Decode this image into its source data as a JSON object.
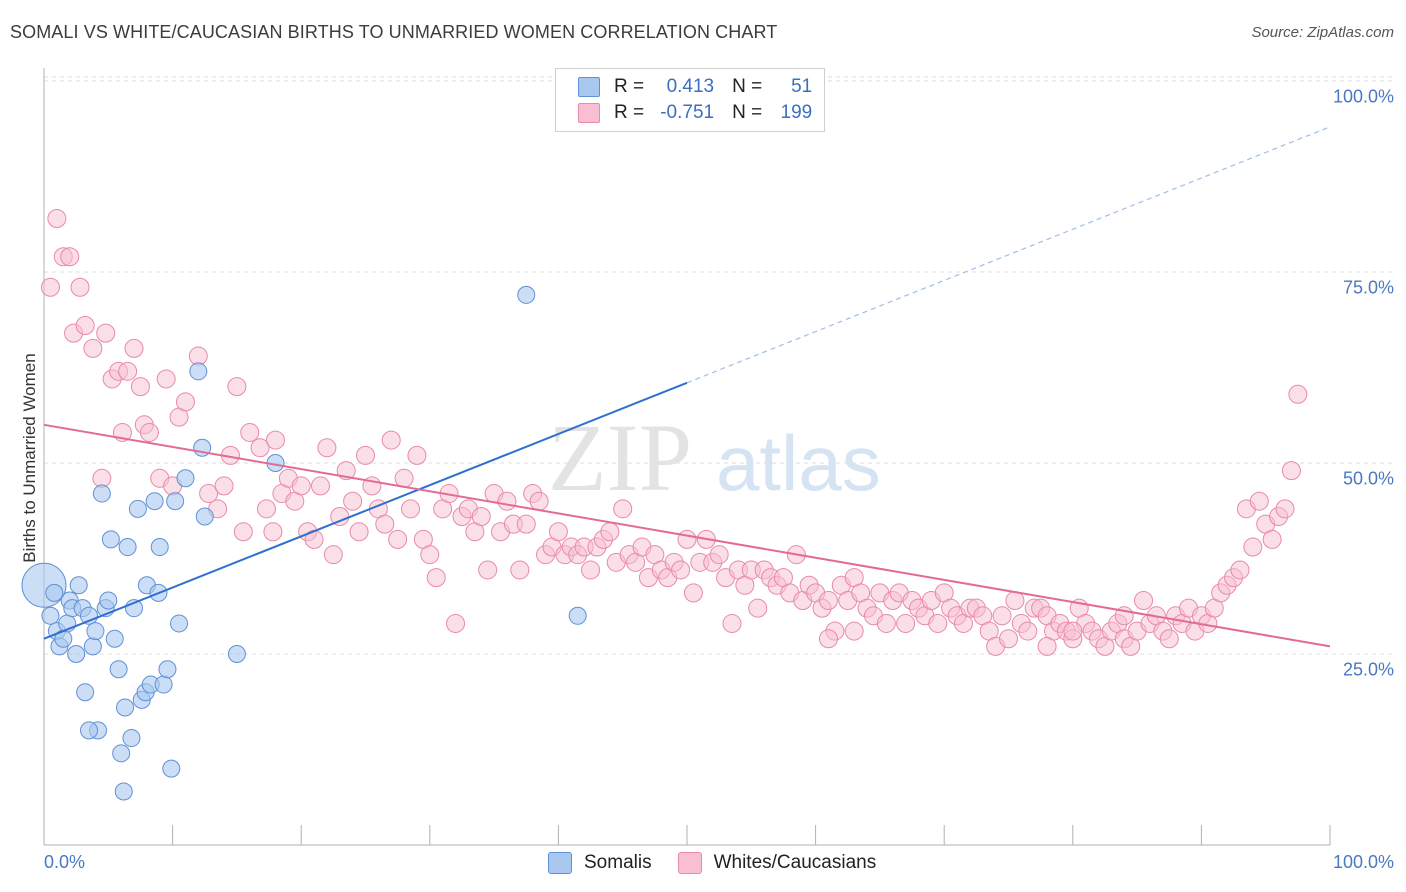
{
  "chart_data": {
    "type": "scatter",
    "title": "SOMALI VS WHITE/CAUCASIAN BIRTHS TO UNMARRIED WOMEN CORRELATION CHART",
    "source": "Source: ZipAtlas.com",
    "xlabel": "",
    "ylabel": "Births to Unmarried Women",
    "xlim": [
      0,
      100
    ],
    "ylim": [
      0,
      105
    ],
    "x_tick_labels": [
      "0.0%",
      "100.0%"
    ],
    "y_tick_labels": [
      "100.0%",
      "75.0%",
      "50.0%",
      "25.0%"
    ],
    "y_ticks": [
      100,
      75,
      50,
      25
    ],
    "grid": true,
    "watermark": {
      "part1": "ZIP",
      "part2": "atlas"
    },
    "colors": {
      "somali_fill": "#a9c8ef",
      "somali_stroke": "#5f91d6",
      "somali_line": "#2f6fd0",
      "white_fill": "#f7bfd1",
      "white_stroke": "#e88aa8",
      "white_line": "#e36a94"
    },
    "legend": [
      {
        "r_label": "R =",
        "r_value": "0.413",
        "n_label": "N =",
        "n_value": "51"
      },
      {
        "r_label": "R =",
        "r_value": "-0.751",
        "n_label": "N =",
        "n_value": "199"
      }
    ],
    "series": [
      {
        "name": "Somalis",
        "regression": {
          "x0": 0,
          "y0": 27,
          "x1": 50,
          "y1": 60.5,
          "dash_to_x": 100,
          "dash_to_y": 94
        },
        "points": [
          [
            0,
            34
          ],
          [
            0.5,
            30
          ],
          [
            0.8,
            33
          ],
          [
            1,
            28
          ],
          [
            1.2,
            26
          ],
          [
            1.5,
            27
          ],
          [
            1.8,
            29
          ],
          [
            2,
            32
          ],
          [
            2.2,
            31
          ],
          [
            2.5,
            25
          ],
          [
            2.7,
            34
          ],
          [
            3,
            31
          ],
          [
            3.2,
            20
          ],
          [
            3.5,
            30
          ],
          [
            3.8,
            26
          ],
          [
            4,
            28
          ],
          [
            4.2,
            15
          ],
          [
            4.5,
            46
          ],
          [
            4.8,
            31
          ],
          [
            5,
            32
          ],
          [
            5.2,
            40
          ],
          [
            5.5,
            27
          ],
          [
            5.8,
            23
          ],
          [
            6,
            12
          ],
          [
            6.2,
            7
          ],
          [
            6.5,
            39
          ],
          [
            6.8,
            14
          ],
          [
            7,
            31
          ],
          [
            7.3,
            44
          ],
          [
            7.6,
            19
          ],
          [
            7.9,
            20
          ],
          [
            8,
            34
          ],
          [
            8.3,
            21
          ],
          [
            8.6,
            45
          ],
          [
            8.9,
            33
          ],
          [
            9,
            39
          ],
          [
            9.3,
            21
          ],
          [
            9.6,
            23
          ],
          [
            9.9,
            10
          ],
          [
            10.2,
            45
          ],
          [
            10.5,
            29
          ],
          [
            11,
            48
          ],
          [
            12,
            62
          ],
          [
            12.3,
            52
          ],
          [
            12.5,
            43
          ],
          [
            15,
            25
          ],
          [
            18,
            50
          ],
          [
            3.5,
            15
          ],
          [
            6.3,
            18
          ],
          [
            37.5,
            72
          ],
          [
            41.5,
            30
          ]
        ]
      },
      {
        "name": "Whites/Caucasians",
        "regression": {
          "x0": 0,
          "y0": 55,
          "x1": 100,
          "y1": 26
        },
        "points": [
          [
            0.5,
            73
          ],
          [
            1,
            82
          ],
          [
            1.5,
            77
          ],
          [
            2,
            77
          ],
          [
            2.3,
            67
          ],
          [
            2.8,
            73
          ],
          [
            3.2,
            68
          ],
          [
            3.8,
            65
          ],
          [
            4.5,
            48
          ],
          [
            4.8,
            67
          ],
          [
            5.3,
            61
          ],
          [
            5.8,
            62
          ],
          [
            6.1,
            54
          ],
          [
            6.5,
            62
          ],
          [
            7,
            65
          ],
          [
            7.5,
            60
          ],
          [
            7.8,
            55
          ],
          [
            8.2,
            54
          ],
          [
            9,
            48
          ],
          [
            9.5,
            61
          ],
          [
            10,
            47
          ],
          [
            10.5,
            56
          ],
          [
            11,
            58
          ],
          [
            12,
            64
          ],
          [
            12.8,
            46
          ],
          [
            13.5,
            44
          ],
          [
            14,
            47
          ],
          [
            14.5,
            51
          ],
          [
            15,
            60
          ],
          [
            15.5,
            41
          ],
          [
            16,
            54
          ],
          [
            16.8,
            52
          ],
          [
            17.3,
            44
          ],
          [
            17.8,
            41
          ],
          [
            18,
            53
          ],
          [
            18.5,
            46
          ],
          [
            19,
            48
          ],
          [
            19.5,
            45
          ],
          [
            20,
            47
          ],
          [
            20.5,
            41
          ],
          [
            21,
            40
          ],
          [
            21.5,
            47
          ],
          [
            22,
            52
          ],
          [
            22.5,
            38
          ],
          [
            23,
            43
          ],
          [
            23.5,
            49
          ],
          [
            24,
            45
          ],
          [
            24.5,
            41
          ],
          [
            25,
            51
          ],
          [
            25.5,
            47
          ],
          [
            26,
            44
          ],
          [
            26.5,
            42
          ],
          [
            27,
            53
          ],
          [
            27.5,
            40
          ],
          [
            28,
            48
          ],
          [
            28.5,
            44
          ],
          [
            29,
            51
          ],
          [
            29.5,
            40
          ],
          [
            30,
            38
          ],
          [
            30.5,
            35
          ],
          [
            31,
            44
          ],
          [
            31.5,
            46
          ],
          [
            32,
            29
          ],
          [
            32.5,
            43
          ],
          [
            33,
            44
          ],
          [
            33.5,
            41
          ],
          [
            34,
            43
          ],
          [
            34.5,
            36
          ],
          [
            35,
            46
          ],
          [
            35.5,
            41
          ],
          [
            36,
            45
          ],
          [
            36.5,
            42
          ],
          [
            37,
            36
          ],
          [
            37.5,
            42
          ],
          [
            38,
            46
          ],
          [
            38.5,
            45
          ],
          [
            39,
            38
          ],
          [
            39.5,
            39
          ],
          [
            40,
            41
          ],
          [
            40.5,
            38
          ],
          [
            41,
            39
          ],
          [
            41.5,
            38
          ],
          [
            42,
            39
          ],
          [
            42.5,
            36
          ],
          [
            43,
            39
          ],
          [
            43.5,
            40
          ],
          [
            44,
            41
          ],
          [
            44.5,
            37
          ],
          [
            45,
            44
          ],
          [
            45.5,
            38
          ],
          [
            46,
            37
          ],
          [
            46.5,
            39
          ],
          [
            47,
            35
          ],
          [
            47.5,
            38
          ],
          [
            48,
            36
          ],
          [
            48.5,
            35
          ],
          [
            49,
            37
          ],
          [
            49.5,
            36
          ],
          [
            50,
            40
          ],
          [
            50.5,
            33
          ],
          [
            51,
            37
          ],
          [
            51.5,
            40
          ],
          [
            52,
            37
          ],
          [
            52.5,
            38
          ],
          [
            53,
            35
          ],
          [
            53.5,
            29
          ],
          [
            54,
            36
          ],
          [
            54.5,
            34
          ],
          [
            55,
            36
          ],
          [
            55.5,
            31
          ],
          [
            56,
            36
          ],
          [
            56.5,
            35
          ],
          [
            57,
            34
          ],
          [
            57.5,
            35
          ],
          [
            58,
            33
          ],
          [
            58.5,
            38
          ],
          [
            59,
            32
          ],
          [
            59.5,
            34
          ],
          [
            60,
            33
          ],
          [
            60.5,
            31
          ],
          [
            61,
            32
          ],
          [
            61.5,
            28
          ],
          [
            62,
            34
          ],
          [
            62.5,
            32
          ],
          [
            63,
            35
          ],
          [
            63.5,
            33
          ],
          [
            64,
            31
          ],
          [
            64.5,
            30
          ],
          [
            65,
            33
          ],
          [
            65.5,
            29
          ],
          [
            66,
            32
          ],
          [
            66.5,
            33
          ],
          [
            67,
            29
          ],
          [
            67.5,
            32
          ],
          [
            68,
            31
          ],
          [
            68.5,
            30
          ],
          [
            69,
            32
          ],
          [
            69.5,
            29
          ],
          [
            70,
            33
          ],
          [
            70.5,
            31
          ],
          [
            71,
            30
          ],
          [
            71.5,
            29
          ],
          [
            72,
            31
          ],
          [
            72.5,
            31
          ],
          [
            73,
            30
          ],
          [
            73.5,
            28
          ],
          [
            74,
            26
          ],
          [
            74.5,
            30
          ],
          [
            75,
            27
          ],
          [
            75.5,
            32
          ],
          [
            76,
            29
          ],
          [
            76.5,
            28
          ],
          [
            77,
            31
          ],
          [
            77.5,
            31
          ],
          [
            78,
            30
          ],
          [
            78.5,
            28
          ],
          [
            79,
            29
          ],
          [
            79.5,
            28
          ],
          [
            80,
            27
          ],
          [
            80.5,
            31
          ],
          [
            81,
            29
          ],
          [
            81.5,
            28
          ],
          [
            82,
            27
          ],
          [
            82.5,
            26
          ],
          [
            83,
            28
          ],
          [
            83.5,
            29
          ],
          [
            84,
            27
          ],
          [
            84.5,
            26
          ],
          [
            85,
            28
          ],
          [
            85.5,
            32
          ],
          [
            86,
            29
          ],
          [
            86.5,
            30
          ],
          [
            87,
            28
          ],
          [
            87.5,
            27
          ],
          [
            88,
            30
          ],
          [
            88.5,
            29
          ],
          [
            89,
            31
          ],
          [
            89.5,
            28
          ],
          [
            90,
            30
          ],
          [
            90.5,
            29
          ],
          [
            91,
            31
          ],
          [
            91.5,
            33
          ],
          [
            92,
            34
          ],
          [
            92.5,
            35
          ],
          [
            93,
            36
          ],
          [
            93.5,
            44
          ],
          [
            94,
            39
          ],
          [
            94.5,
            45
          ],
          [
            95,
            42
          ],
          [
            95.5,
            40
          ],
          [
            96,
            43
          ],
          [
            96.5,
            44
          ],
          [
            97,
            49
          ],
          [
            97.5,
            59
          ],
          [
            61,
            27
          ],
          [
            63,
            28
          ],
          [
            78,
            26
          ],
          [
            80,
            28
          ],
          [
            84,
            30
          ]
        ]
      }
    ]
  }
}
